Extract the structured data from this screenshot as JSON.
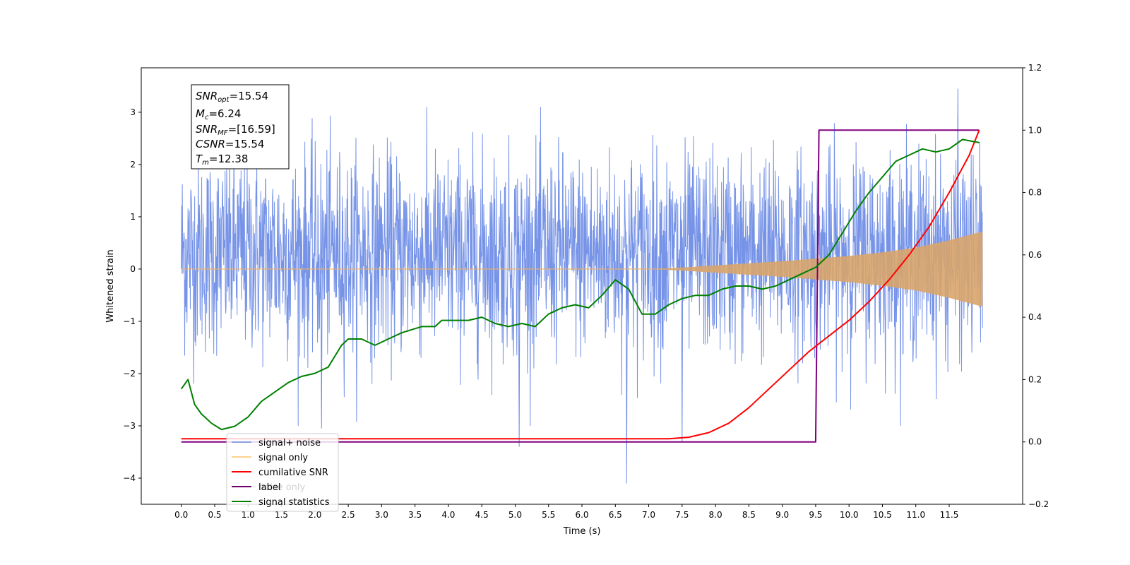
{
  "chart_data": {
    "type": "line",
    "xlabel": "Time (s)",
    "ylabel": "Whitened strain",
    "x_ticks": [
      "0.0",
      "0.5",
      "1.0",
      "1.5",
      "2.0",
      "2.5",
      "3.0",
      "3.5",
      "4.0",
      "4.5",
      "5.0",
      "5.5",
      "6.0",
      "6.5",
      "7.0",
      "7.5",
      "8.0",
      "8.5",
      "9.0",
      "9.5",
      "10.0",
      "10.5",
      "11.0",
      "11.5"
    ],
    "xlim": [
      -0.6,
      12.6
    ],
    "left_axis": {
      "ylim": [
        -4.5,
        3.85
      ],
      "ticks": [
        "−4",
        "−3",
        "−2",
        "−1",
        "0",
        "1",
        "2",
        "3"
      ]
    },
    "right_axis": {
      "ylim": [
        -0.2,
        1.2
      ],
      "ticks": [
        "−0.2",
        "0.0",
        "0.2",
        "0.4",
        "0.6",
        "0.8",
        "1.0",
        "1.2"
      ]
    },
    "legend_position": "lower-left",
    "legend": [
      {
        "label": "signal+ noise",
        "color": "#6f8de6"
      },
      {
        "label": "signal only",
        "color": "#ffc266"
      },
      {
        "label": "cumilative SNR",
        "color": "#ff0000"
      },
      {
        "label": "label",
        "color": "#6a006a"
      },
      {
        "label": "signal statistics",
        "color": "#008000"
      }
    ],
    "hidden_legend_text": "noise only",
    "annotation": {
      "lines": [
        {
          "base": "SNR",
          "sub": "opt",
          "value": "=15.54"
        },
        {
          "base": "M",
          "sub": "c",
          "value": "=6.24"
        },
        {
          "base": "SNR",
          "sub": "MF",
          "value": "=[16.59]"
        },
        {
          "base": "CSNR",
          "sub": "",
          "value": "=15.54"
        },
        {
          "base": "T",
          "sub": "m",
          "value": "=12.38"
        }
      ]
    },
    "series": [
      {
        "name": "signal+ noise",
        "axis": "left",
        "color": "#6f8de6",
        "x_range": [
          0.0,
          12.0
        ],
        "note_peaks": {
          "max": 3.45,
          "min": -4.1
        },
        "typical_envelope": [
          -1.6,
          2.4
        ]
      },
      {
        "name": "signal only",
        "axis": "left",
        "color": "#d9a56b",
        "envelope": {
          "x": [
            0,
            7.0,
            7.5,
            8.0,
            8.5,
            9.0,
            9.5,
            10.0,
            10.5,
            11.0,
            11.5,
            12.0
          ],
          "amp": [
            0.0,
            0.0,
            0.03,
            0.07,
            0.11,
            0.15,
            0.2,
            0.25,
            0.32,
            0.41,
            0.55,
            0.72
          ]
        }
      },
      {
        "name": "cumilative SNR",
        "axis": "right",
        "color": "#ff0000",
        "x": [
          0,
          7.3,
          7.6,
          7.9,
          8.2,
          8.5,
          8.8,
          9.1,
          9.4,
          9.7,
          10.0,
          10.3,
          10.6,
          10.9,
          11.2,
          11.5,
          11.8,
          11.95
        ],
        "y": [
          0.01,
          0.01,
          0.015,
          0.03,
          0.06,
          0.11,
          0.17,
          0.23,
          0.29,
          0.34,
          0.39,
          0.45,
          0.52,
          0.6,
          0.69,
          0.8,
          0.92,
          1.0
        ]
      },
      {
        "name": "label",
        "axis": "right",
        "color": "#800080",
        "x": [
          0,
          9.5,
          9.55,
          11.95
        ],
        "y": [
          0.0,
          0.0,
          1.0,
          1.0
        ]
      },
      {
        "name": "signal statistics",
        "axis": "right",
        "color": "#008000",
        "x": [
          0.0,
          0.1,
          0.2,
          0.3,
          0.45,
          0.6,
          0.8,
          1.0,
          1.2,
          1.4,
          1.6,
          1.8,
          2.0,
          2.2,
          2.4,
          2.5,
          2.7,
          2.9,
          3.1,
          3.3,
          3.6,
          3.8,
          3.9,
          4.1,
          4.3,
          4.5,
          4.7,
          4.9,
          5.1,
          5.3,
          5.5,
          5.7,
          5.9,
          6.1,
          6.3,
          6.5,
          6.7,
          6.9,
          7.1,
          7.3,
          7.5,
          7.7,
          7.9,
          8.1,
          8.3,
          8.5,
          8.7,
          8.9,
          9.1,
          9.3,
          9.5,
          9.7,
          9.9,
          10.1,
          10.3,
          10.5,
          10.7,
          10.9,
          11.1,
          11.3,
          11.5,
          11.7,
          11.95
        ],
        "y": [
          0.17,
          0.2,
          0.12,
          0.09,
          0.06,
          0.04,
          0.05,
          0.08,
          0.13,
          0.16,
          0.19,
          0.21,
          0.22,
          0.24,
          0.31,
          0.33,
          0.33,
          0.31,
          0.33,
          0.35,
          0.37,
          0.37,
          0.39,
          0.39,
          0.39,
          0.4,
          0.38,
          0.37,
          0.38,
          0.37,
          0.41,
          0.43,
          0.44,
          0.43,
          0.47,
          0.52,
          0.49,
          0.41,
          0.41,
          0.44,
          0.46,
          0.47,
          0.47,
          0.49,
          0.5,
          0.5,
          0.49,
          0.5,
          0.52,
          0.54,
          0.56,
          0.6,
          0.67,
          0.74,
          0.8,
          0.85,
          0.9,
          0.92,
          0.94,
          0.93,
          0.94,
          0.97,
          0.96
        ]
      }
    ]
  }
}
